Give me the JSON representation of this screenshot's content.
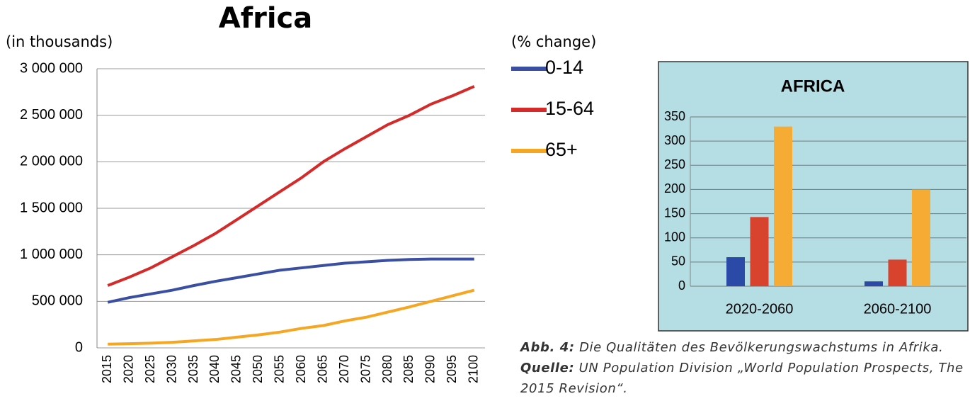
{
  "chart_data": [
    {
      "type": "line",
      "title": "Africa",
      "y_label": "(in thousands)",
      "note": "(% change)",
      "categories": [
        "2015",
        "2020",
        "2025",
        "2030",
        "2035",
        "2040",
        "2045",
        "2050",
        "2055",
        "2060",
        "2065",
        "2070",
        "2075",
        "2080",
        "2085",
        "2090",
        "2095",
        "2100"
      ],
      "series": [
        {
          "name": "0-14",
          "color": "#3a4fa2",
          "values": [
            490000,
            540000,
            580000,
            620000,
            670000,
            715000,
            755000,
            795000,
            835000,
            860000,
            885000,
            910000,
            925000,
            940000,
            950000,
            955000,
            955000,
            955000
          ]
        },
        {
          "name": "15-64",
          "color": "#d52a2a",
          "values": [
            670000,
            760000,
            860000,
            980000,
            1100000,
            1230000,
            1380000,
            1530000,
            1680000,
            1830000,
            2000000,
            2140000,
            2270000,
            2400000,
            2500000,
            2620000,
            2710000,
            2810000
          ]
        },
        {
          "name": "65+",
          "color": "#f5a623",
          "values": [
            40000,
            45000,
            50000,
            60000,
            75000,
            90000,
            115000,
            140000,
            170000,
            210000,
            240000,
            290000,
            330000,
            385000,
            440000,
            500000,
            560000,
            620000
          ]
        }
      ],
      "ylim": [
        0,
        3000000
      ],
      "yticks": [
        0,
        {
          "value": 500000,
          "label": "500 000"
        },
        {
          "value": 1000000,
          "label": "1 000 000"
        },
        {
          "value": 1500000,
          "label": "1 500 000"
        },
        {
          "value": 2000000,
          "label": "2 000 000"
        },
        {
          "value": 2500000,
          "label": "2 500 000"
        },
        {
          "value": 3000000,
          "label": "3 000 000"
        }
      ],
      "grid": true,
      "legend": "right"
    },
    {
      "type": "bar",
      "title": "AFRICA",
      "categories": [
        "2020-2060",
        "2060-2100"
      ],
      "series": [
        {
          "color": "#2b4aa8",
          "values": [
            60,
            10
          ]
        },
        {
          "color": "#d8432e",
          "values": [
            143,
            55
          ]
        },
        {
          "color": "#f6ab35",
          "values": [
            330,
            200
          ]
        }
      ],
      "ylim": [
        0,
        350
      ],
      "yticks": [
        0,
        50,
        100,
        150,
        200,
        250,
        300,
        350
      ],
      "grid": true
    }
  ],
  "caption": {
    "label": "Abb. 4:",
    "text": "Die Qualitäten des Bevölkerungswachstums in Afrika.",
    "source_label": "Quelle:",
    "source": "UN Population Division „World Population Prospects, The 2015 Revision“."
  }
}
